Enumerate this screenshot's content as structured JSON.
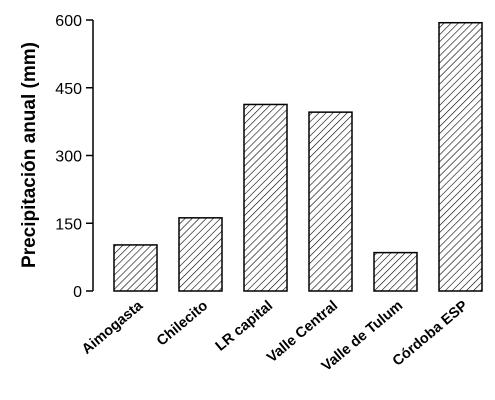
{
  "chart_data": {
    "type": "bar",
    "title": "",
    "xlabel": "",
    "ylabel": "Precipitación anual (mm)",
    "categories": [
      "Aimogasta",
      "Chilecito",
      "LR capital",
      "Valle Central",
      "Valle de Tulum",
      "Córdoba ESP"
    ],
    "values": [
      102,
      162,
      413,
      396,
      85,
      594
    ],
    "ylim": [
      0,
      600
    ],
    "yticks": [
      0,
      150,
      300,
      450,
      600
    ],
    "grid": false,
    "bar_fill": "diagonal-hatch",
    "colors": {
      "fill": "#ffffff",
      "stroke": "#000000"
    }
  }
}
